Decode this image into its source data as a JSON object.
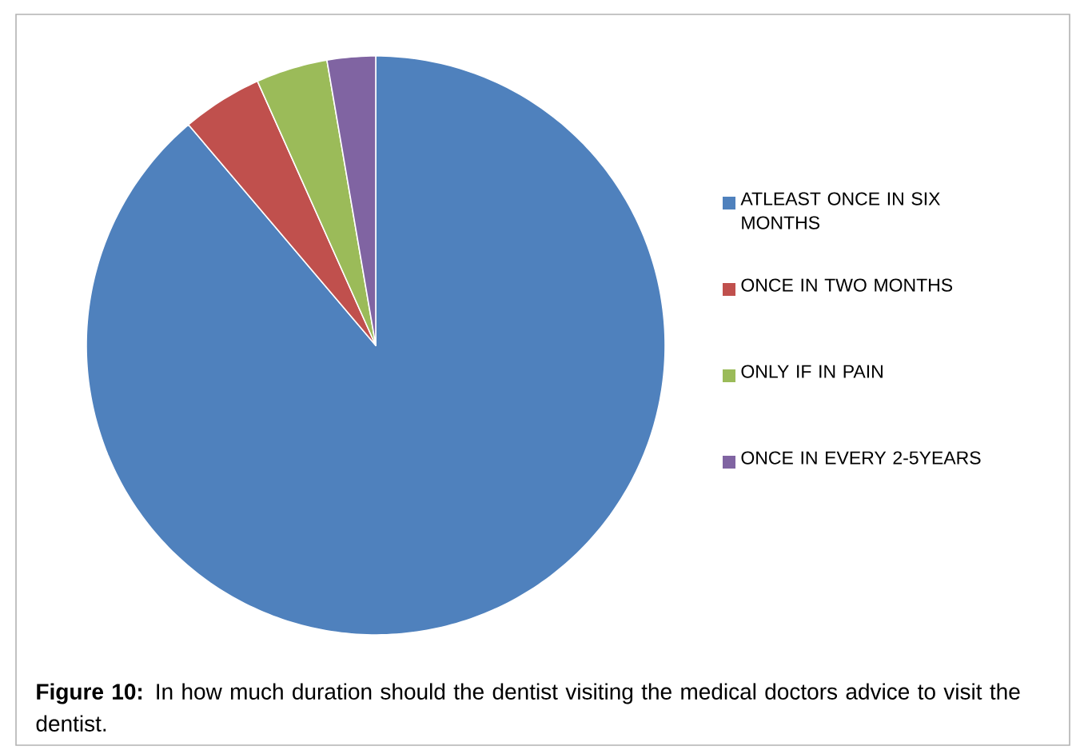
{
  "chart_data": {
    "type": "pie",
    "categories": [
      "ATLEAST ONCE IN SIX MONTHS",
      "ONCE IN TWO MONTHS",
      "ONLY IF IN PAIN",
      "ONCE IN EVERY 2-5YEARS"
    ],
    "values": [
      88.8,
      4.5,
      4.0,
      2.7
    ],
    "colors": [
      "#4f81bd",
      "#c0504d",
      "#9bbb59",
      "#8064a2"
    ],
    "legend": "right",
    "annotations": [
      "**Figure 10:** In how much duration should the dentist visiting the medical doctors advice to visit the dentist."
    ]
  }
}
